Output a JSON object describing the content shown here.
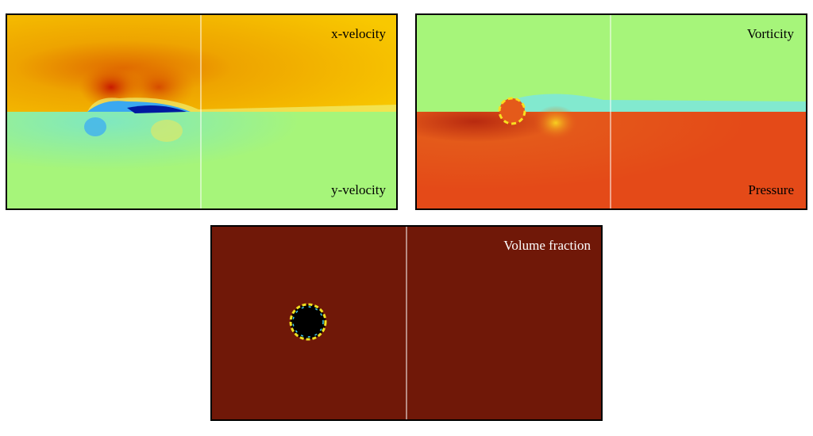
{
  "panels": [
    {
      "labels": [
        "x-velocity",
        "y-velocity"
      ]
    },
    {
      "labels": [
        "Vorticity",
        "Pressure"
      ]
    },
    {
      "labels": [
        "Volume fraction"
      ]
    }
  ]
}
